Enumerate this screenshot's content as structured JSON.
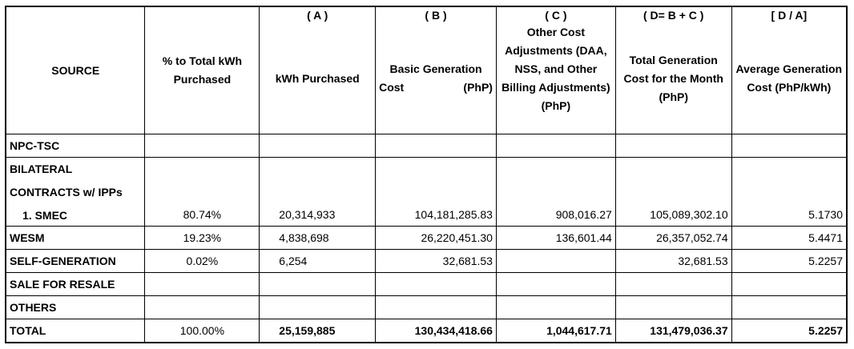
{
  "header": {
    "source": "SOURCE",
    "pct": "% to Total kWh Purchased",
    "kwh_letter": "( A )",
    "kwh": "kWh Purchased",
    "basic_letter": "( B )",
    "basic_line1": "Basic Generation",
    "basic_line2a": "Cost",
    "basic_line2b": "(PhP)",
    "other_letter": "( C )",
    "other": "Other Cost Adjustments (DAA, NSS, and Other Billing Adjustments) (PhP)",
    "total_letter": "( D= B + C )",
    "total": "Total Generation Cost for the Month (PhP)",
    "avg_letter": "[ D / A]",
    "avg": "Average Generation Cost (PhP/kWh)"
  },
  "rows": {
    "npc": {
      "source": "NPC-TSC"
    },
    "bilateral": {
      "line1": "BILATERAL",
      "line2": "CONTRACTS w/ IPPs",
      "item": "1.   SMEC",
      "pct": "80.74%",
      "kwh": "20,314,933",
      "basic": "104,181,285.83",
      "other": "908,016.27",
      "total": "105,089,302.10",
      "avg": "5.1730"
    },
    "wesm": {
      "source": "WESM",
      "pct": "19.23%",
      "kwh": "4,838,698",
      "basic": "26,220,451.30",
      "other": "136,601.44",
      "total": "26,357,052.74",
      "avg": "5.4471"
    },
    "self": {
      "source": "SELF-GENERATION",
      "pct": "0.02%",
      "kwh": "6,254",
      "basic": "32,681.53",
      "other": "",
      "total": "32,681.53",
      "avg": "5.2257"
    },
    "resale": {
      "source": "SALE FOR RESALE"
    },
    "others": {
      "source": "OTHERS"
    },
    "total": {
      "source": "TOTAL",
      "pct": "100.00%",
      "kwh": "25,159,885",
      "basic": "130,434,418.66",
      "other": "1,044,617.71",
      "total": "131,479,036.37",
      "avg": "5.2257"
    }
  }
}
